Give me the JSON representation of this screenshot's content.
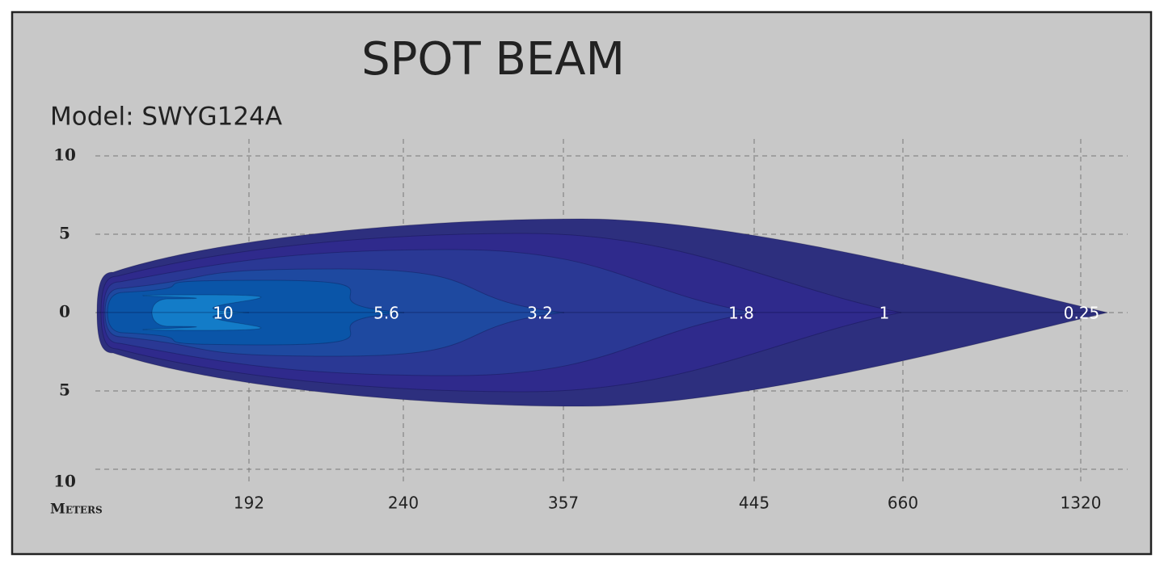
{
  "chart_data": {
    "type": "beam",
    "title": "SPOT  BEAM",
    "subtitle": "Model: SWYG124A",
    "x_label": "Meters",
    "categories": [
      "192",
      "240",
      "357",
      "445",
      "660",
      "1320"
    ],
    "ylim": [
      -10,
      10
    ],
    "yticks": [
      10,
      5,
      0,
      {
        "value": -5,
        "label": "5"
      },
      {
        "value": -10,
        "label": "10"
      }
    ],
    "grid": true,
    "contours": {
      "values": [
        0.25,
        1,
        1.8,
        3.2,
        5.6,
        10
      ],
      "colors": [
        "#2d2f7e",
        "#2f2a8c",
        "#2a3894",
        "#1e49a0",
        "#0a55a8",
        "#137cc8"
      ]
    }
  }
}
